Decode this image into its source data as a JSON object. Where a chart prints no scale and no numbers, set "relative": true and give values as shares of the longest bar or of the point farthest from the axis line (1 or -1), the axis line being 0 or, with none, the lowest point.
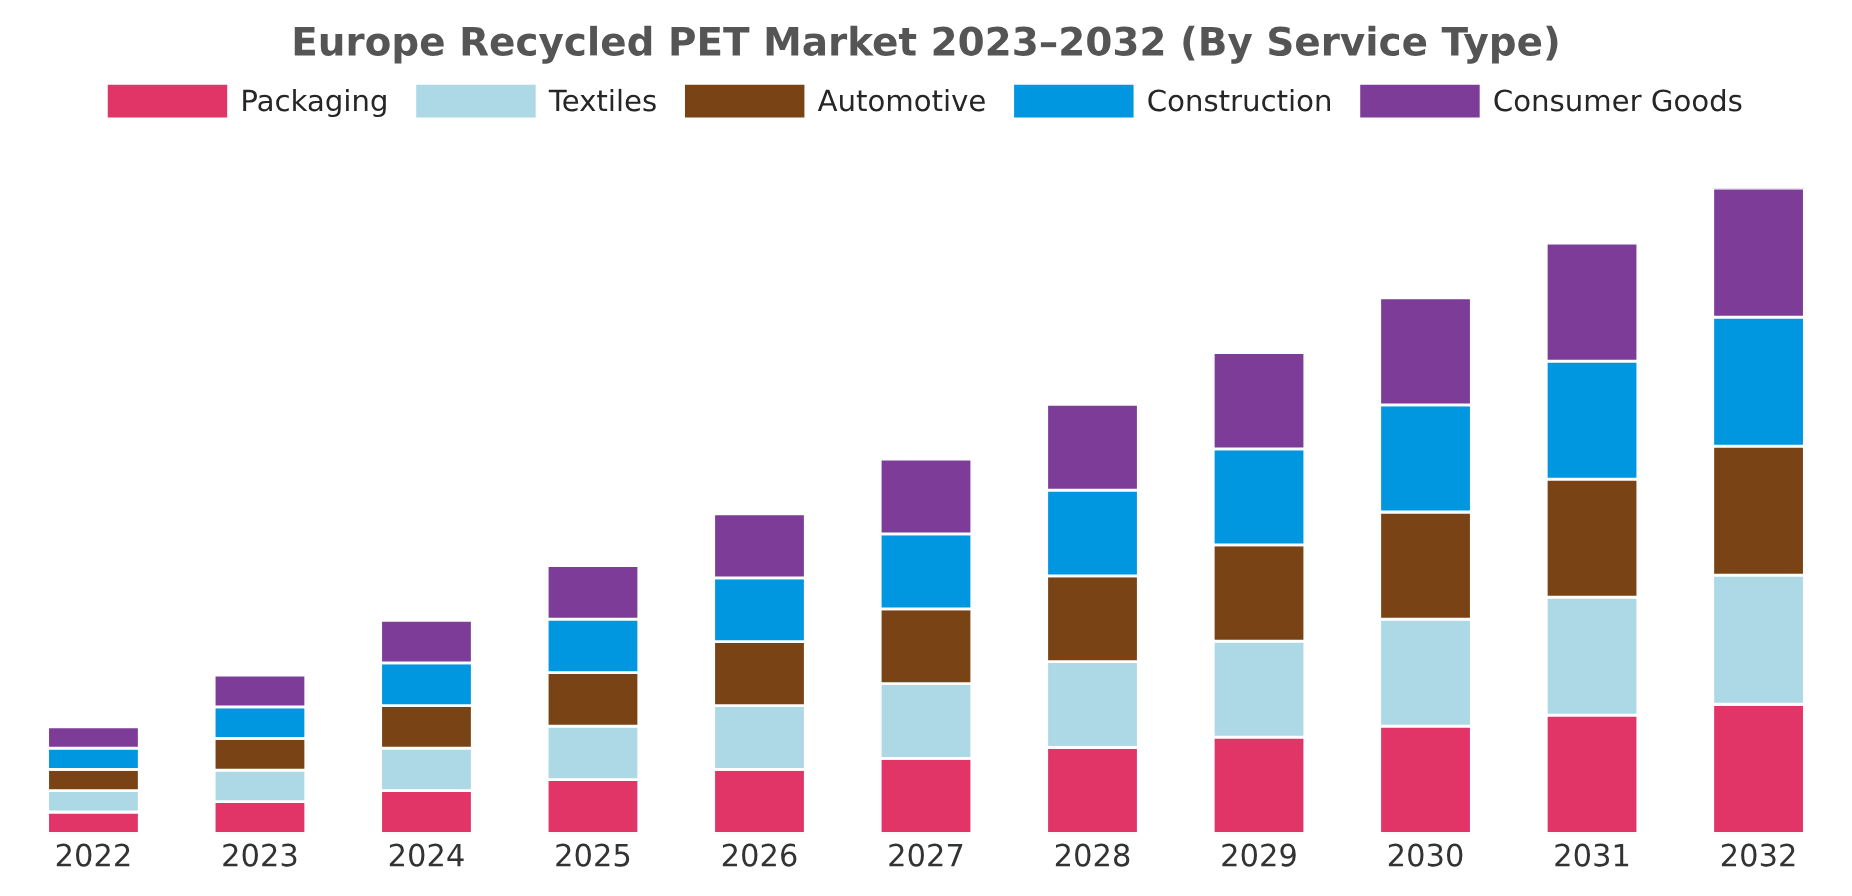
{
  "chart_data": {
    "type": "bar",
    "title": "Europe Recycled PET Market 2023–2032 (By Service Type)",
    "categories": [
      "2022",
      "2023",
      "2024",
      "2025",
      "2026",
      "2027",
      "2028",
      "2029",
      "2030",
      "2031",
      "2032"
    ],
    "relative": true,
    "stacked": true,
    "legend": "top",
    "grid": false,
    "series": [
      {
        "name": "Packaging",
        "color": "#e03566",
        "values": [
          0.033,
          0.049,
          0.066,
          0.083,
          0.099,
          0.116,
          0.133,
          0.149,
          0.166,
          0.183,
          0.2
        ]
      },
      {
        "name": "Textiles",
        "color": "#add8e6",
        "values": [
          0.033,
          0.049,
          0.066,
          0.083,
          0.099,
          0.116,
          0.133,
          0.149,
          0.166,
          0.183,
          0.2
        ]
      },
      {
        "name": "Automotive",
        "color": "#7a4315",
        "values": [
          0.033,
          0.049,
          0.066,
          0.083,
          0.099,
          0.116,
          0.133,
          0.149,
          0.166,
          0.183,
          0.2
        ]
      },
      {
        "name": "Construction",
        "color": "#0096e0",
        "values": [
          0.033,
          0.049,
          0.066,
          0.083,
          0.099,
          0.116,
          0.133,
          0.149,
          0.166,
          0.183,
          0.2
        ]
      },
      {
        "name": "Consumer Goods",
        "color": "#7d3c98",
        "values": [
          0.033,
          0.049,
          0.066,
          0.083,
          0.099,
          0.116,
          0.133,
          0.149,
          0.166,
          0.183,
          0.2
        ]
      }
    ]
  }
}
